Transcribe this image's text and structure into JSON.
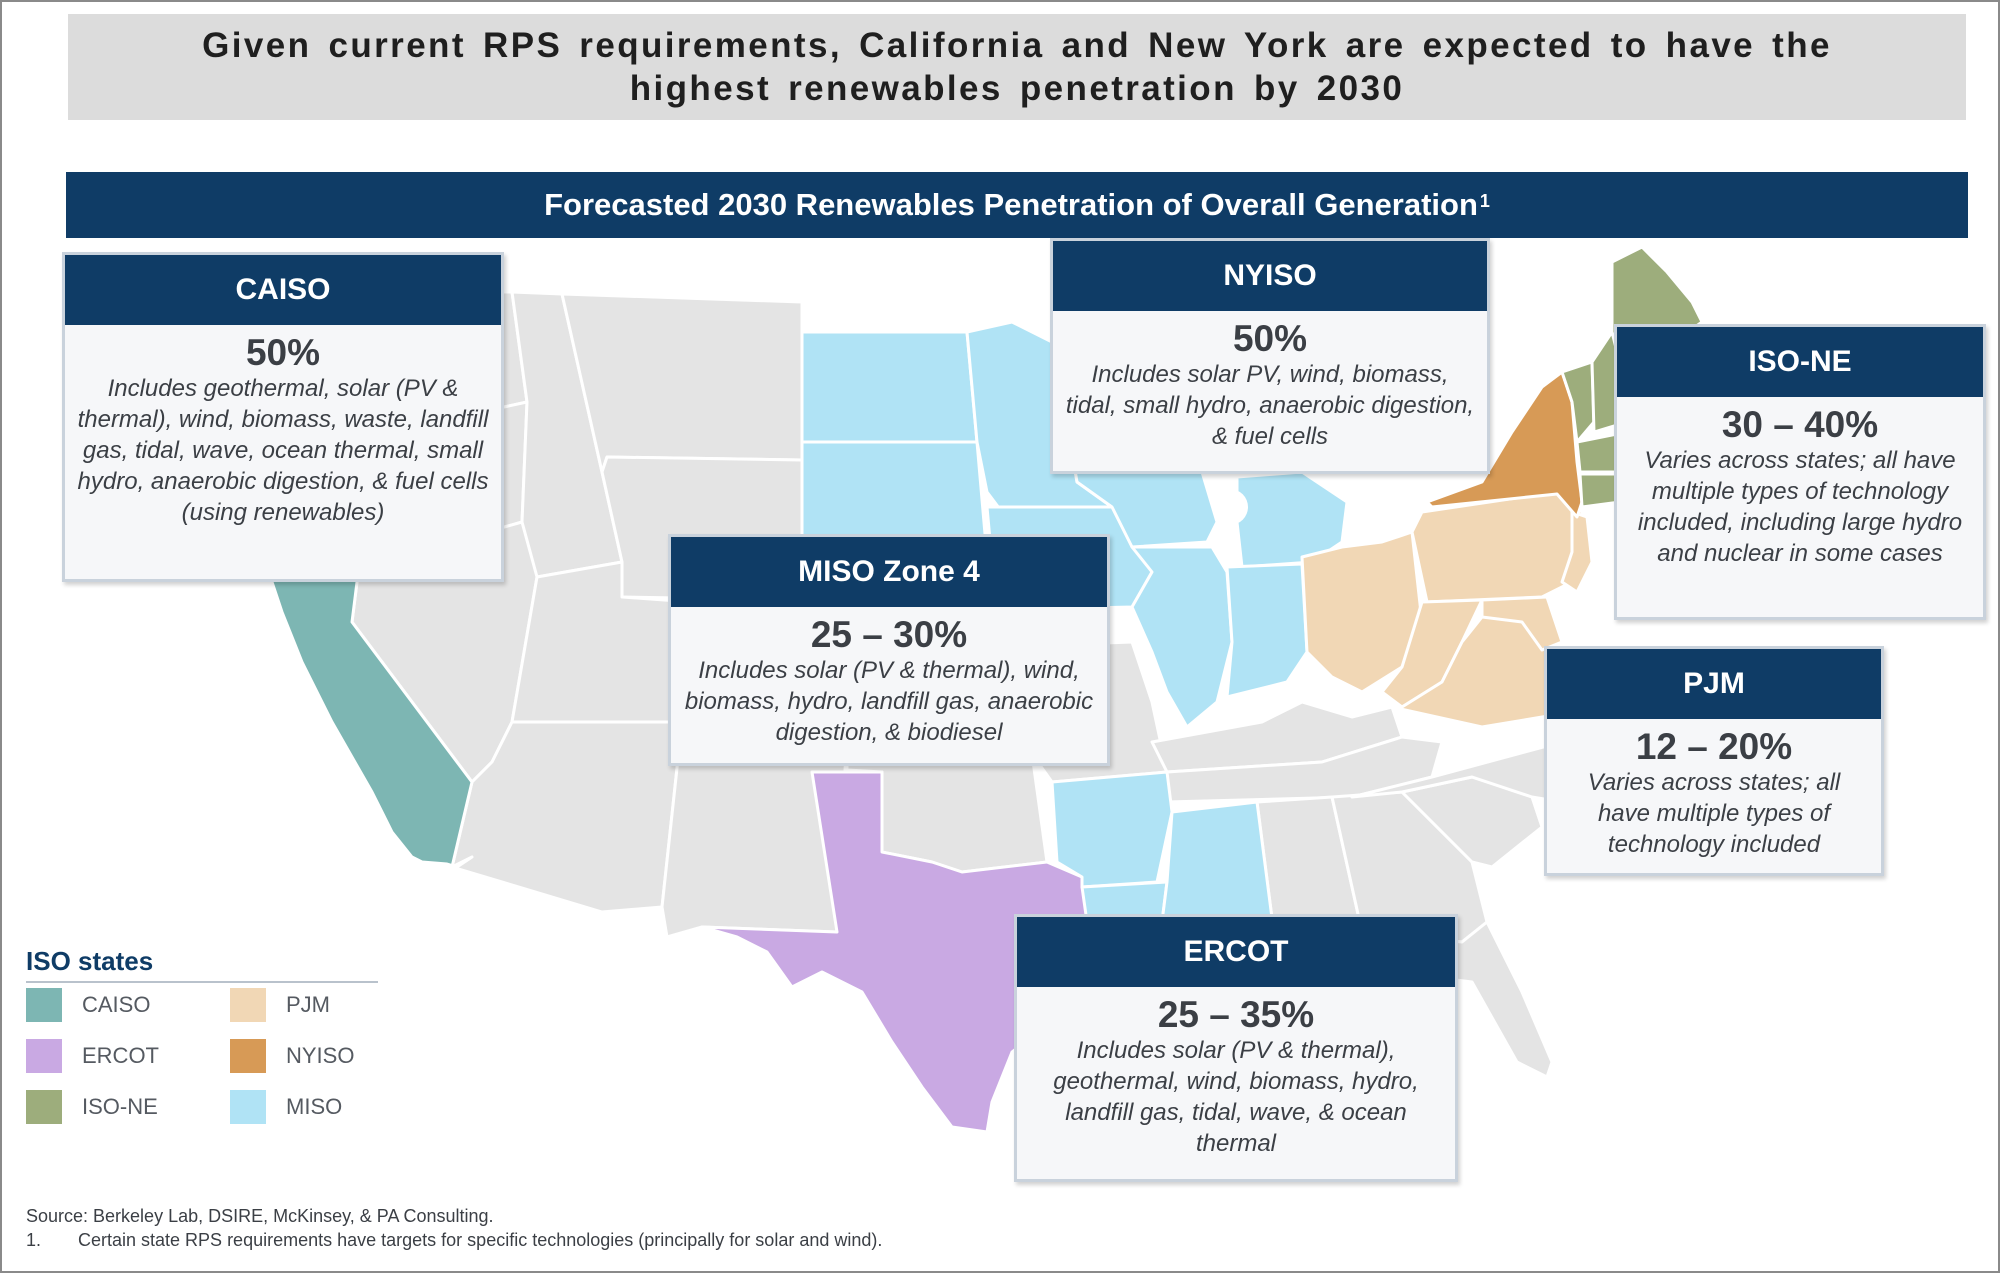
{
  "headline": "Given current RPS requirements, California and New York are expected to have the highest renewables penetration by 2030",
  "map_title": "Forecasted 2030 Renewables Penetration of Overall Generation",
  "map_title_footnote_marker": "1",
  "colors": {
    "CAISO": "#7db6b3",
    "ERCOT": "#c9a9e3",
    "ISO-NE": "#9dad7c",
    "PJM": "#f1d7b5",
    "NYISO": "#d79a56",
    "MISO": "#b0e3f5",
    "non_iso": "#e4e4e4",
    "header_navy": "#0f3c66"
  },
  "callouts": {
    "caiso": {
      "name": "CAISO",
      "value": "50%",
      "description": "Includes geothermal, solar (PV & thermal), wind, biomass, waste, landfill gas, tidal, wave, ocean thermal, small hydro, anaerobic digestion, & fuel cells (using renewables)"
    },
    "nyiso": {
      "name": "NYISO",
      "value": "50%",
      "description": "Includes solar PV, wind, biomass, tidal, small hydro, anaerobic digestion, & fuel cells"
    },
    "iso_ne": {
      "name": "ISO-NE",
      "value": "30 – 40%",
      "description": "Varies across states; all have multiple types of technology included, including large hydro and nuclear in some cases"
    },
    "miso": {
      "name": "MISO Zone 4",
      "value": "25 – 30%",
      "description": "Includes solar (PV & thermal), wind, biomass, hydro, landfill gas, anaerobic digestion, & biodiesel"
    },
    "pjm": {
      "name": "PJM",
      "value": "12 – 20%",
      "description": "Varies across states; all have multiple types of technology included"
    },
    "ercot": {
      "name": "ERCOT",
      "value": "25 – 35%",
      "description": "Includes solar (PV & thermal), geothermal, wind, biomass, hydro, landfill gas, tidal, wave, & ocean thermal"
    }
  },
  "legend": {
    "title": "ISO states",
    "items": [
      {
        "label": "CAISO",
        "color": "#7db6b3"
      },
      {
        "label": "ERCOT",
        "color": "#c9a9e3"
      },
      {
        "label": "ISO-NE",
        "color": "#9dad7c"
      },
      {
        "label": "PJM",
        "color": "#f1d7b5"
      },
      {
        "label": "NYISO",
        "color": "#d79a56"
      },
      {
        "label": "MISO",
        "color": "#b0e3f5"
      }
    ]
  },
  "footnotes": {
    "source": "Source: Berkeley Lab, DSIRE, McKinsey, & PA Consulting.",
    "note_number": "1.",
    "note_text": "Certain state RPS requirements have targets for specific technologies (principally for solar and wind)."
  }
}
